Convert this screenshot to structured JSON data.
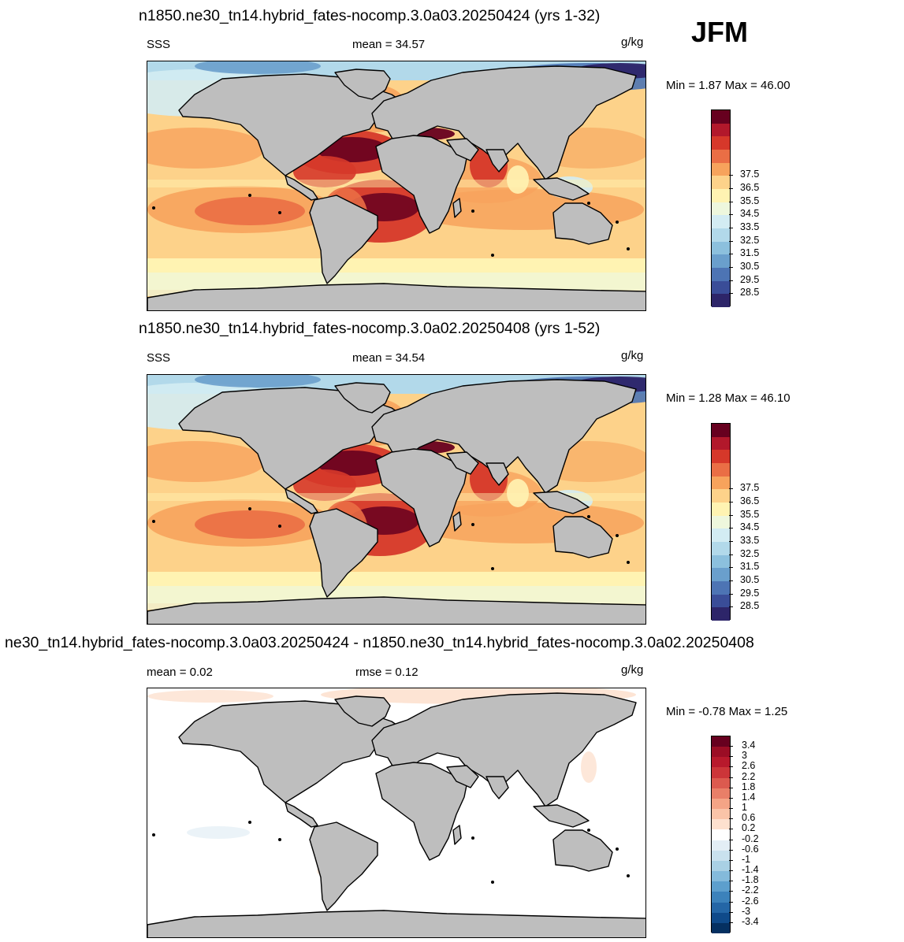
{
  "season": "JFM",
  "land_color": "#bebebe",
  "panels": [
    {
      "title": "n1850.ne30_tn14.hybrid_fates-nocomp.3.0a03.20250424 (yrs 1-32)",
      "left_label": "SSS",
      "center_label": "mean =  34.57",
      "units": "g/kg",
      "minmax": "Min =   1.87 Max =  46.00",
      "colorbar_labels": [
        "37.5",
        "36.5",
        "35.5",
        "34.5",
        "33.5",
        "32.5",
        "31.5",
        "30.5",
        "29.5",
        "28.5"
      ],
      "colors": [
        "#67001f",
        "#b2182b",
        "#d6382a",
        "#ea6e45",
        "#f7a35c",
        "#fdd28a",
        "#fff3b2",
        "#eef7dd",
        "#d3ecf3",
        "#b2d9ea",
        "#8cc0dd",
        "#6a9fcc",
        "#4d74b4",
        "#3a4d98",
        "#2d2569"
      ]
    },
    {
      "title": "n1850.ne30_tn14.hybrid_fates-nocomp.3.0a02.20250408 (yrs 1-52)",
      "left_label": "SSS",
      "center_label": "mean =  34.54",
      "units": "g/kg",
      "minmax": "Min =   1.28 Max =  46.10",
      "colorbar_labels": [
        "37.5",
        "36.5",
        "35.5",
        "34.5",
        "33.5",
        "32.5",
        "31.5",
        "30.5",
        "29.5",
        "28.5"
      ],
      "colors": [
        "#67001f",
        "#b2182b",
        "#d6382a",
        "#ea6e45",
        "#f7a35c",
        "#fdd28a",
        "#fff3b2",
        "#eef7dd",
        "#d3ecf3",
        "#b2d9ea",
        "#8cc0dd",
        "#6a9fcc",
        "#4d74b4",
        "#3a4d98",
        "#2d2569"
      ]
    },
    {
      "title": "ne30_tn14.hybrid_fates-nocomp.3.0a03.20250424 - n1850.ne30_tn14.hybrid_fates-nocomp.3.0a02.20250408",
      "left_label": "mean =   0.02",
      "center_label": "rmse =   0.12",
      "units": "g/kg",
      "minmax": "Min =  -0.78 Max =    1.25",
      "colorbar_labels": [
        "3.4",
        "3",
        "2.6",
        "2.2",
        "1.8",
        "1.4",
        "1",
        "0.6",
        "0.2",
        "-0.2",
        "-0.6",
        "-1",
        "-1.4",
        "-1.8",
        "-2.2",
        "-2.6",
        "-3",
        "-3.4"
      ],
      "colors": [
        "#67001f",
        "#9b0d25",
        "#b8192c",
        "#cc3539",
        "#dc5a4f",
        "#e97f68",
        "#f4a486",
        "#fac4a8",
        "#fde1cf",
        "#ffffff",
        "#e3eef5",
        "#c9e1ee",
        "#a9d0e4",
        "#84badb",
        "#5d9fcd",
        "#3c82bb",
        "#2466a6",
        "#0f4a8a",
        "#053061"
      ]
    }
  ]
}
